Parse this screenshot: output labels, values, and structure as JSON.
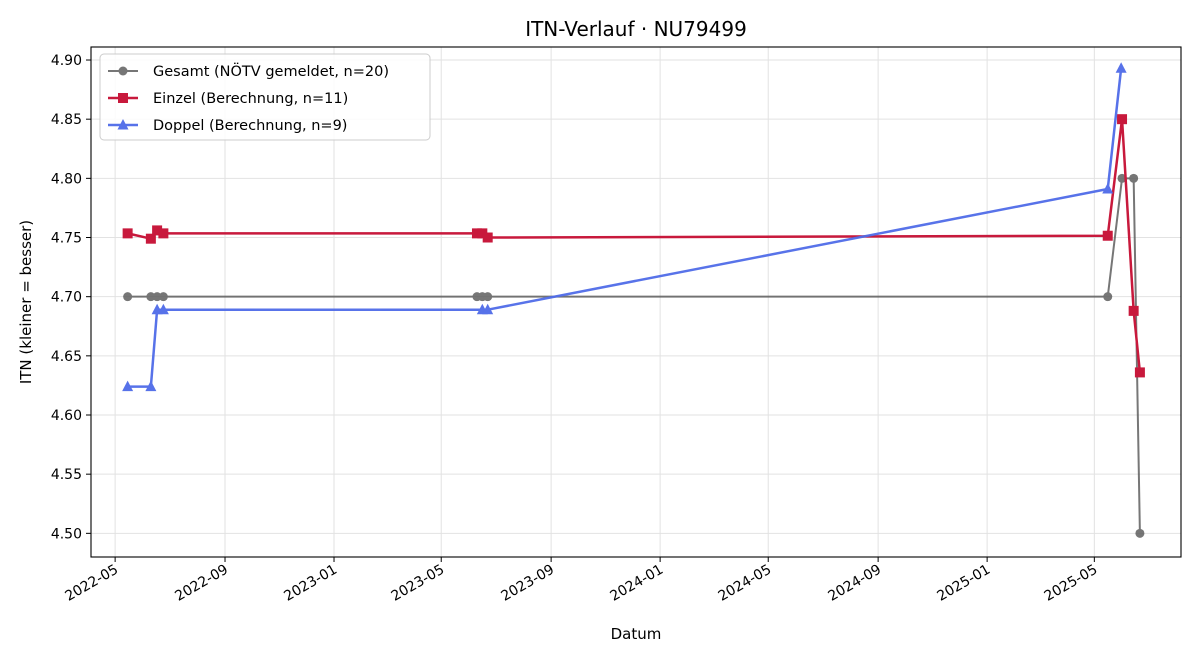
{
  "chart_data": {
    "type": "line",
    "title": "ITN-Verlauf · NU79499",
    "xlabel": "Datum",
    "ylabel": "ITN  (kleiner = besser)",
    "x_axis_type": "date",
    "xlim": [
      "2022-04-04",
      "2025-08-06"
    ],
    "ylim": [
      4.48,
      4.911
    ],
    "x_ticks": [
      "2022-05-01",
      "2022-09-01",
      "2023-01-01",
      "2023-05-01",
      "2023-09-01",
      "2024-01-01",
      "2024-05-01",
      "2024-09-01",
      "2025-01-01",
      "2025-05-01"
    ],
    "x_tick_labels": [
      "2022-05",
      "2022-09",
      "2023-01",
      "2023-05",
      "2023-09",
      "2024-01",
      "2024-05",
      "2024-09",
      "2025-01",
      "2025-05"
    ],
    "y_ticks": [
      4.5,
      4.55,
      4.6,
      4.65,
      4.7,
      4.75,
      4.8,
      4.85,
      4.9
    ],
    "y_tick_labels": [
      "4.50",
      "4.55",
      "4.60",
      "4.65",
      "4.70",
      "4.75",
      "4.80",
      "4.85",
      "4.90"
    ],
    "grid": true,
    "legend_position": "top-left",
    "series": [
      {
        "name": "Gesamt (NÖTV gemeldet, n=20)",
        "color": "#555555",
        "marker": "circle",
        "points": [
          [
            "2022-05-15",
            4.7
          ],
          [
            "2022-06-10",
            4.7
          ],
          [
            "2022-06-17",
            4.7
          ],
          [
            "2022-06-24",
            4.7
          ],
          [
            "2023-06-10",
            4.7
          ],
          [
            "2023-06-16",
            4.7
          ],
          [
            "2023-06-22",
            4.7
          ],
          [
            "2025-05-16",
            4.7
          ],
          [
            "2025-06-01",
            4.8
          ],
          [
            "2025-06-14",
            4.8
          ],
          [
            "2025-06-21",
            4.5
          ]
        ]
      },
      {
        "name": "Einzel (Berechnung, n=11)",
        "color": "#c8193c",
        "marker": "square",
        "points": [
          [
            "2022-05-15",
            4.7535
          ],
          [
            "2022-06-10",
            4.749
          ],
          [
            "2022-06-17",
            4.756
          ],
          [
            "2022-06-24",
            4.7535
          ],
          [
            "2023-06-10",
            4.7535
          ],
          [
            "2023-06-16",
            4.7535
          ],
          [
            "2023-06-22",
            4.75
          ],
          [
            "2025-05-16",
            4.7515
          ],
          [
            "2025-06-01",
            4.85
          ],
          [
            "2025-06-14",
            4.688
          ],
          [
            "2025-06-21",
            4.636
          ]
        ]
      },
      {
        "name": "Doppel (Berechnung, n=9)",
        "color": "#4f6be8",
        "marker": "triangle",
        "points": [
          [
            "2022-05-15",
            4.624
          ],
          [
            "2022-06-10",
            4.624
          ],
          [
            "2022-06-17",
            4.689
          ],
          [
            "2022-06-24",
            4.689
          ],
          [
            "2023-06-16",
            4.689
          ],
          [
            "2023-06-22",
            4.689
          ],
          [
            "2025-05-16",
            4.791
          ],
          [
            "2025-05-31",
            4.893
          ]
        ]
      }
    ]
  }
}
